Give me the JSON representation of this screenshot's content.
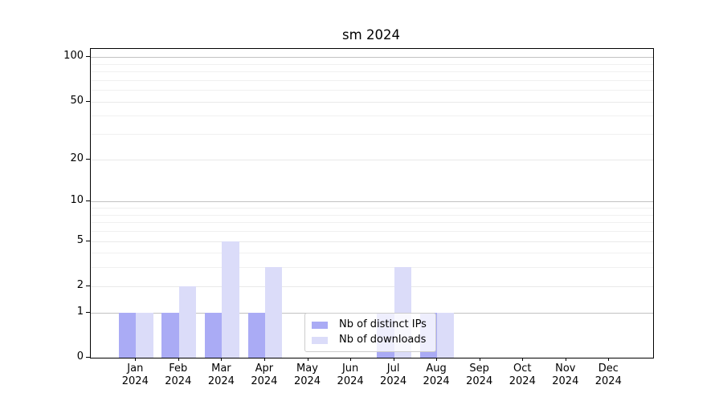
{
  "figure": {
    "background": "#ffffff",
    "spine_color": "#000000",
    "grid_decade_color": "#c2c2c2",
    "grid_light_color": "#e9e9e9",
    "grid_minor_color": "#f0f0f0"
  },
  "chart_data": {
    "type": "bar",
    "title": "sm 2024",
    "categories": [
      "Jan 2024",
      "Feb 2024",
      "Mar 2024",
      "Apr 2024",
      "May 2024",
      "Jun 2024",
      "Jul 2024",
      "Aug 2024",
      "Sep 2024",
      "Oct 2024",
      "Nov 2024",
      "Dec 2024"
    ],
    "series": [
      {
        "name": "Nb of distinct IPs",
        "color": "#aaabf5",
        "values": [
          1,
          1,
          1,
          1,
          0,
          0,
          1,
          1,
          0,
          0,
          0,
          0
        ]
      },
      {
        "name": "Nb of downloads",
        "color": "#dbdcf9",
        "values": [
          1,
          2,
          5,
          3,
          0,
          0,
          3,
          1,
          0,
          0,
          0,
          0
        ]
      }
    ],
    "xlabel": "",
    "ylabel": "",
    "y_axis": {
      "scale": "log10(1+y)",
      "tick_values": [
        0,
        1,
        2,
        5,
        10,
        20,
        50,
        100
      ],
      "tick_labels": [
        "0",
        "1",
        "2",
        "5",
        "10",
        "20",
        "50",
        "100"
      ],
      "decade_gridlines": [
        1,
        10,
        100
      ],
      "minor_gridlines": [
        3,
        4,
        6,
        7,
        8,
        9,
        30,
        40,
        60,
        70,
        80,
        90
      ],
      "ylim": [
        0,
        112
      ]
    },
    "grid": true,
    "legend_position": "lower center"
  }
}
